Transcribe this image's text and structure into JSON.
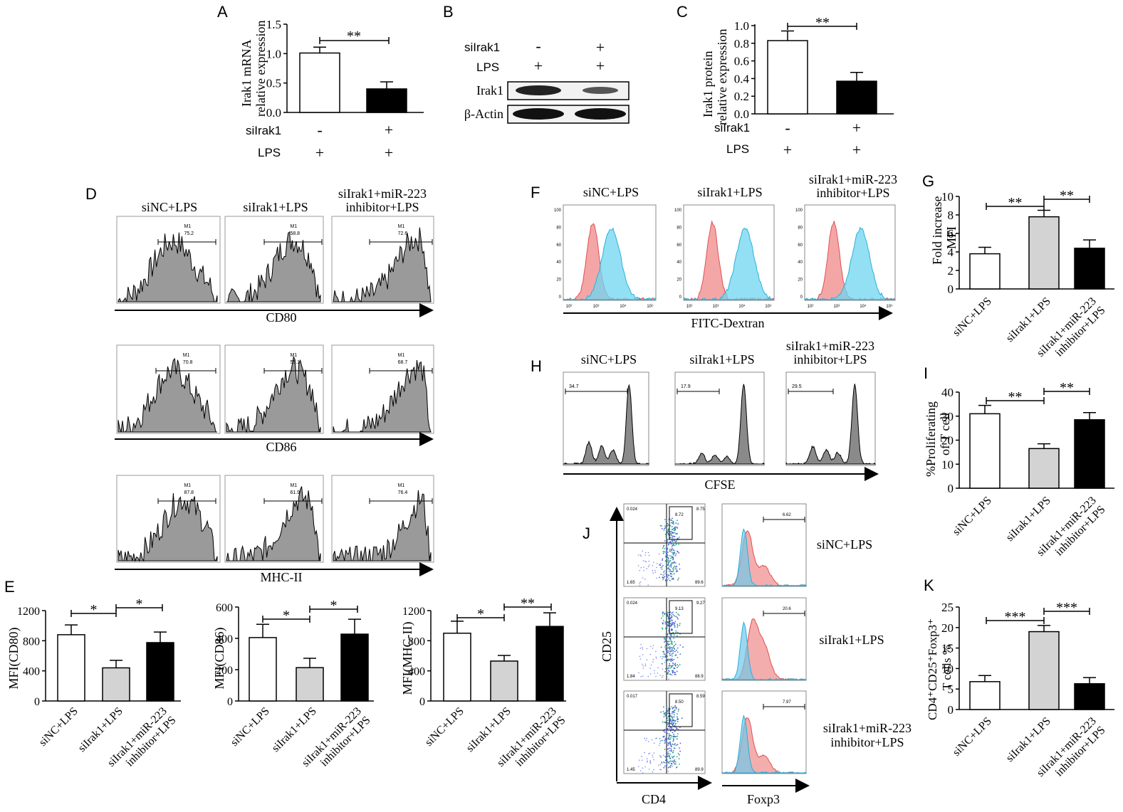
{
  "labels": {
    "A": "A",
    "B": "B",
    "C": "C",
    "D": "D",
    "E": "E",
    "F": "F",
    "G": "G",
    "H": "H",
    "I": "I",
    "J": "J",
    "K": "K"
  },
  "panelA": {
    "ylabel1": "Irak1 mRNA",
    "ylabel2": "relative expression",
    "ticks": [
      "0.0",
      "0.5",
      "1.0",
      "1.5"
    ],
    "sig": "**",
    "row1": "siIrak1",
    "row2": "LPS",
    "col1": [
      "-",
      "+"
    ],
    "col2": [
      "+",
      "+"
    ]
  },
  "panelB": {
    "row1": "siIrak1",
    "row2": "LPS",
    "band1": "Irak1",
    "band2": "β-Actin",
    "col1": [
      "-",
      "+"
    ],
    "col2": [
      "+",
      "+"
    ]
  },
  "panelC": {
    "ylabel1": "Irak1 protein",
    "ylabel2": "relative expression",
    "ticks": [
      "0.0",
      "0.2",
      "0.4",
      "0.6",
      "0.8",
      "1.0"
    ],
    "sig": "**",
    "row1": "siIrak1",
    "row2": "LPS",
    "col1": [
      "-",
      "+"
    ],
    "col2": [
      "+",
      "+"
    ]
  },
  "panelD": {
    "col1": "siNC+LPS",
    "col2": "siIrak1+LPS",
    "col3a": "siIrak1+miR-223",
    "col3b": "inhibitor+LPS",
    "axes": [
      "CD80",
      "CD86",
      "MHC-II"
    ],
    "gate": "M1",
    "values": [
      [
        "75.2",
        "58.8",
        "72.6"
      ],
      [
        "70.8",
        "55.1",
        "68.7"
      ],
      [
        "87.8",
        "61.9",
        "76.4"
      ]
    ]
  },
  "panelE": {
    "titles": [
      "MFI(CD80)",
      "MFI(CD86)",
      "MFI(MHC-II)"
    ],
    "ticks": [
      [
        "0",
        "400",
        "800",
        "1200"
      ],
      [
        "0",
        "200",
        "400",
        "600"
      ],
      [
        "0",
        "400",
        "800",
        "1200"
      ]
    ],
    "sig": [
      [
        "*",
        "*"
      ],
      [
        "*",
        "*"
      ],
      [
        "*",
        "**"
      ]
    ],
    "cats": [
      "siNC+LPS",
      "siIrak1+LPS",
      "siIrak1+miR-223",
      "inhibitor+LPS"
    ]
  },
  "panelF": {
    "col1": "siNC+LPS",
    "col2": "siIrak1+LPS",
    "col3a": "siIrak1+miR-223",
    "col3b": "inhibitor+LPS",
    "axis": "FITC-Dextran"
  },
  "panelG": {
    "ylabel1": "Fold increase",
    "ylabel2": "MFI",
    "ticks": [
      "0",
      "2",
      "4",
      "6",
      "8",
      "10"
    ],
    "sig": [
      "**",
      "**"
    ]
  },
  "panelH": {
    "col1": "siNC+LPS",
    "col2": "siIrak1+LPS",
    "col3a": "siIrak1+miR-223",
    "col3b": "inhibitor+LPS",
    "axis": "CFSE",
    "values": [
      "34.7",
      "17.9",
      "29.5"
    ]
  },
  "panelI": {
    "ylabel1": "%Proliferating",
    "ylabel2": "of T cell",
    "ticks": [
      "0",
      "10",
      "20",
      "30",
      "40"
    ],
    "sig": [
      "**",
      "**"
    ]
  },
  "panelJ": {
    "yaxis": "CD25",
    "xaxis1": "CD4",
    "xaxis2": "Foxp3",
    "rows": [
      "siNC+LPS",
      "siIrak1+LPS",
      "siIrak1+miR-223"
    ],
    "row3b": "inhibitor+LPS",
    "quad": [
      [
        "0.024",
        "8.75",
        "1.65",
        "89.6",
        "8.72"
      ],
      [
        "0.024",
        "9.27",
        "1.84",
        "88.9",
        "9.13"
      ],
      [
        "0.017",
        "8.59",
        "1.45",
        "89.9",
        "8.50"
      ]
    ],
    "foxp3": [
      "6.62",
      "20.6",
      "7.97"
    ]
  },
  "panelK": {
    "ylabel1": "CD4⁺CD25⁺Foxp3⁺",
    "ylabel2": "T cells %",
    "ticks": [
      "0",
      "5",
      "10",
      "15",
      "20",
      "25"
    ],
    "sig": [
      "***",
      "***"
    ]
  },
  "chart_data": [
    {
      "id": "A",
      "type": "bar",
      "categories": [
        "siIrak1- LPS+",
        "siIrak1+ LPS+"
      ],
      "values": [
        1.01,
        0.4
      ],
      "errors": [
        0.1,
        0.12
      ],
      "colors": [
        "#ffffff",
        "#000000"
      ],
      "ylim": [
        0,
        1.5
      ]
    },
    {
      "id": "C",
      "type": "bar",
      "categories": [
        "siIrak1- LPS+",
        "siIrak1+ LPS+"
      ],
      "values": [
        0.83,
        0.37
      ],
      "errors": [
        0.11,
        0.1
      ],
      "colors": [
        "#ffffff",
        "#000000"
      ],
      "ylim": [
        0,
        1.0
      ]
    },
    {
      "id": "E1",
      "type": "bar",
      "categories": [
        "siNC+LPS",
        "siIrak1+LPS",
        "siIrak1+miR-223 inhibitor+LPS"
      ],
      "values": [
        880,
        440,
        775
      ],
      "errors": [
        130,
        100,
        140
      ],
      "colors": [
        "#ffffff",
        "#d3d3d3",
        "#000000"
      ],
      "ylim": [
        0,
        1200
      ],
      "ylabel": "MFI(CD80)"
    },
    {
      "id": "E2",
      "type": "bar",
      "categories": [
        "siNC+LPS",
        "siIrak1+LPS",
        "siIrak1+miR-223 inhibitor+LPS"
      ],
      "values": [
        405,
        213,
        427
      ],
      "errors": [
        85,
        60,
        95
      ],
      "colors": [
        "#ffffff",
        "#d3d3d3",
        "#000000"
      ],
      "ylim": [
        0,
        600
      ],
      "ylabel": "MFI(CD86)"
    },
    {
      "id": "E3",
      "type": "bar",
      "categories": [
        "siNC+LPS",
        "siIrak1+LPS",
        "siIrak1+miR-223 inhibitor+LPS"
      ],
      "values": [
        900,
        530,
        990
      ],
      "errors": [
        160,
        75,
        180
      ],
      "colors": [
        "#ffffff",
        "#d3d3d3",
        "#000000"
      ],
      "ylim": [
        0,
        1200
      ],
      "ylabel": "MFI(MHC-II)"
    },
    {
      "id": "G",
      "type": "bar",
      "categories": [
        "siNC+LPS",
        "siIrak1+LPS",
        "siIrak1+miR-223 inhibitor+LPS"
      ],
      "values": [
        3.8,
        7.8,
        4.4
      ],
      "errors": [
        0.7,
        0.7,
        0.9
      ],
      "colors": [
        "#ffffff",
        "#d3d3d3",
        "#000000"
      ],
      "ylim": [
        0,
        10
      ],
      "ylabel": "Fold increase MFI"
    },
    {
      "id": "I",
      "type": "bar",
      "categories": [
        "siNC+LPS",
        "siIrak1+LPS",
        "siIrak1+miR-223 inhibitor+LPS"
      ],
      "values": [
        31,
        16.5,
        28.5
      ],
      "errors": [
        3.5,
        2,
        3
      ],
      "colors": [
        "#ffffff",
        "#d3d3d3",
        "#000000"
      ],
      "ylim": [
        0,
        40
      ],
      "ylabel": "%Proliferating of T cell"
    },
    {
      "id": "K",
      "type": "bar",
      "categories": [
        "siNC+LPS",
        "siIrak1+LPS",
        "siIrak1+miR-223 inhibitor+LPS"
      ],
      "values": [
        6.8,
        19,
        6.3
      ],
      "errors": [
        1.5,
        1.5,
        1.5
      ],
      "colors": [
        "#ffffff",
        "#d3d3d3",
        "#000000"
      ],
      "ylim": [
        0,
        25
      ],
      "ylabel": "CD4+CD25+Foxp3+ T cells %"
    }
  ]
}
